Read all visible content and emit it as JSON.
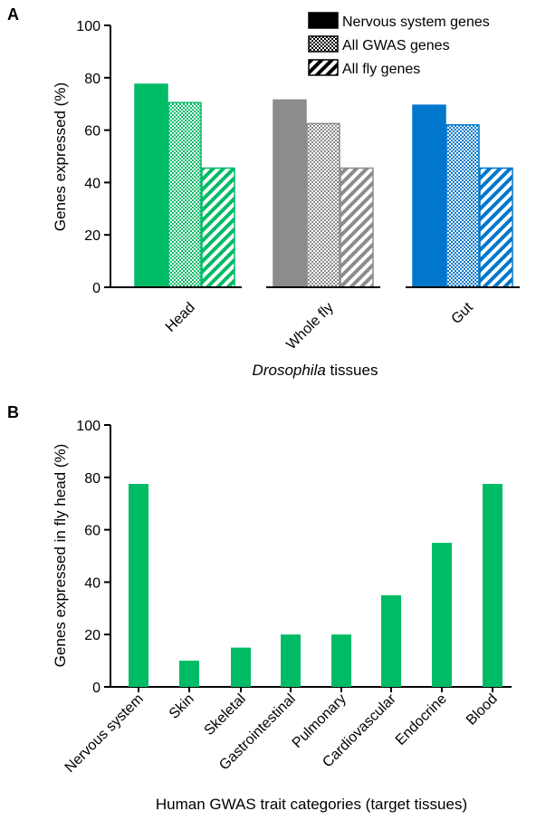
{
  "chart_data": [
    {
      "panel": "A",
      "type": "bar",
      "ylabel": "Genes expressed (%)",
      "xlabel_italic": "Drosophila",
      "xlabel_rest": " tissues",
      "ylim": [
        0,
        100
      ],
      "yticks": [
        "0",
        "20",
        "40",
        "60",
        "80",
        "100"
      ],
      "categories": [
        "Head",
        "Whole fly",
        "Gut"
      ],
      "category_colors": [
        "#00bb66",
        "#8c8c8c",
        "#0077cc"
      ],
      "legend_position": "top-right",
      "series": [
        {
          "name": "Nervous system genes",
          "pattern": "solid",
          "values": [
            77.5,
            71.5,
            69.5
          ]
        },
        {
          "name": "All GWAS genes",
          "pattern": "checker",
          "values": [
            70.5,
            62.5,
            62
          ]
        },
        {
          "name": "All fly genes",
          "pattern": "hatch",
          "values": [
            45.5,
            45.5,
            45.5
          ]
        }
      ]
    },
    {
      "panel": "B",
      "type": "bar",
      "ylabel": "Genes expressed in fly head (%)",
      "xlabel": "Human GWAS trait categories (target tissues)",
      "ylim": [
        0,
        100
      ],
      "yticks": [
        "0",
        "20",
        "40",
        "60",
        "80",
        "100"
      ],
      "color": "#00bb66",
      "categories": [
        "Nervous system",
        "Skin",
        "Skeletal",
        "Gastrointestinal",
        "Pulmonary",
        "Cardiovascular",
        "Endocrine",
        "Blood"
      ],
      "values": [
        77.5,
        10,
        15,
        20,
        20,
        35,
        55,
        77.5
      ]
    }
  ]
}
